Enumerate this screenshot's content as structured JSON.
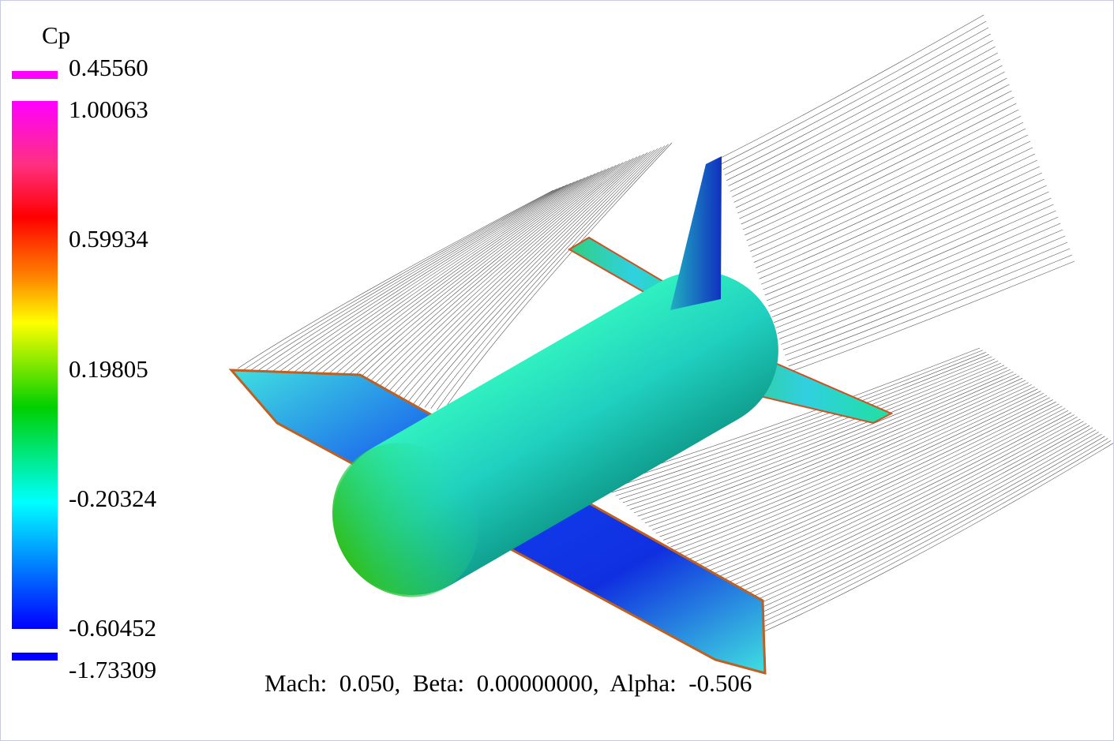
{
  "legend": {
    "title": "Cp",
    "max_label": "0.45560",
    "ticks": [
      "1.00063",
      "0.59934",
      "0.19805",
      "-0.20324",
      "-0.60452"
    ],
    "min_label": "-1.73309"
  },
  "footer": "Mach:  0.050,  Beta:  0.00000000,  Alpha:  -0.506"
}
